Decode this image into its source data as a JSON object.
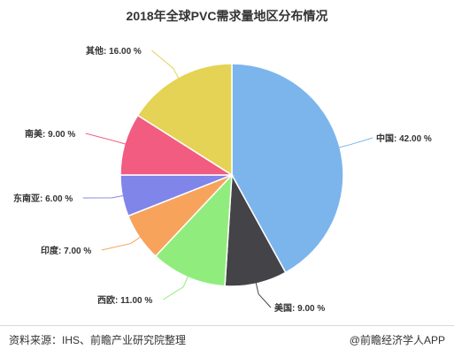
{
  "chart_data": {
    "type": "pie",
    "title": "2018年全球PVC需求量地区分布情况",
    "unit_suffix": " %",
    "slices": [
      {
        "name": "中国",
        "value": 42.0,
        "label": "中国: 42.00 %",
        "color": "#7cb5ec"
      },
      {
        "name": "美国",
        "value": 9.0,
        "label": "美国: 9.00 %",
        "color": "#434348"
      },
      {
        "name": "西欧",
        "value": 11.0,
        "label": "西欧: 11.00 %",
        "color": "#90ed7d"
      },
      {
        "name": "印度",
        "value": 7.0,
        "label": "印度: 7.00 %",
        "color": "#f7a35c"
      },
      {
        "name": "东南亚",
        "value": 6.0,
        "label": "东南亚: 6.00 %",
        "color": "#8085e9"
      },
      {
        "name": "南美",
        "value": 9.0,
        "label": "南美: 9.00 %",
        "color": "#f15c80"
      },
      {
        "name": "其他",
        "value": 16.0,
        "label": "其他: 16.00 %",
        "color": "#e4d354"
      }
    ]
  },
  "footer": {
    "source": "资料来源：IHS、前瞻产业研究院整理",
    "credit": "@前瞻经济学人APP"
  }
}
